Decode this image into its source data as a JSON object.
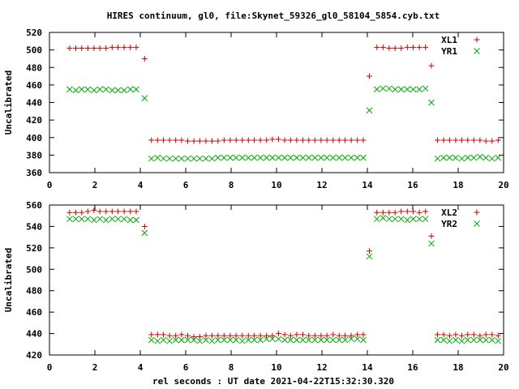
{
  "title": "HIRES continuum, gl0, file:Skynet_59326_gl0_58104_5854.cyb.txt",
  "xlabel": "rel seconds : UT date 2021-04-22T15:32:30.320",
  "colors": {
    "red": "#cc0000",
    "green": "#00aa00",
    "axis": "#000000",
    "background": "#ffffff"
  },
  "chart_data": [
    {
      "type": "scatter",
      "ylabel": "Uncalibrated",
      "xlim": [
        0,
        20
      ],
      "ylim": [
        360,
        520
      ],
      "xticks": [
        "0",
        "2",
        "4",
        "6",
        "8",
        "10",
        "12",
        "14",
        "16",
        "18",
        "20"
      ],
      "yticks": [
        "360",
        "380",
        "400",
        "420",
        "440",
        "460",
        "480",
        "500",
        "520"
      ],
      "legend_position": "top-right",
      "series": [
        {
          "name": "XL1",
          "marker": "plus",
          "color": "#cc0000",
          "x": [
            0.89,
            1.16,
            1.42,
            1.69,
            1.96,
            2.22,
            2.49,
            2.76,
            3.02,
            3.29,
            3.56,
            3.82,
            4.19,
            4.49,
            4.76,
            5.02,
            5.29,
            5.56,
            5.82,
            6.09,
            6.36,
            6.62,
            6.89,
            7.16,
            7.42,
            7.69,
            7.96,
            8.22,
            8.49,
            8.76,
            9.02,
            9.29,
            9.56,
            9.82,
            10.09,
            10.36,
            10.62,
            10.89,
            11.16,
            11.42,
            11.69,
            11.96,
            12.22,
            12.49,
            12.76,
            13.02,
            13.29,
            13.56,
            13.82,
            14.09,
            14.42,
            14.69,
            14.96,
            15.22,
            15.49,
            15.76,
            16.02,
            16.29,
            16.56,
            16.82,
            17.09,
            17.36,
            17.62,
            17.89,
            18.16,
            18.42,
            18.69,
            18.96,
            19.22,
            19.49,
            19.76
          ],
          "y": [
            502,
            502,
            502,
            502,
            502,
            502,
            502,
            503,
            503,
            503,
            503,
            503,
            490,
            397,
            397,
            397,
            397,
            397,
            397,
            396,
            396,
            396,
            396,
            396,
            396,
            397,
            397,
            397,
            397,
            397,
            397,
            397,
            397,
            398,
            398,
            397,
            397,
            397,
            397,
            397,
            397,
            397,
            397,
            397,
            397,
            397,
            397,
            397,
            397,
            470,
            503,
            503,
            502,
            502,
            502,
            503,
            503,
            503,
            503,
            482,
            397,
            397,
            397,
            397,
            397,
            397,
            397,
            397,
            396,
            396,
            397
          ]
        },
        {
          "name": "YR1",
          "marker": "cross",
          "color": "#00aa00",
          "x": [
            0.89,
            1.16,
            1.42,
            1.69,
            1.96,
            2.22,
            2.49,
            2.76,
            3.02,
            3.29,
            3.56,
            3.82,
            4.19,
            4.49,
            4.76,
            5.02,
            5.29,
            5.56,
            5.82,
            6.09,
            6.36,
            6.62,
            6.89,
            7.16,
            7.42,
            7.69,
            7.96,
            8.22,
            8.49,
            8.76,
            9.02,
            9.29,
            9.56,
            9.82,
            10.09,
            10.36,
            10.62,
            10.89,
            11.16,
            11.42,
            11.69,
            11.96,
            12.22,
            12.49,
            12.76,
            13.02,
            13.29,
            13.56,
            13.82,
            14.09,
            14.42,
            14.69,
            14.96,
            15.22,
            15.49,
            15.76,
            16.02,
            16.29,
            16.56,
            16.82,
            17.09,
            17.36,
            17.62,
            17.89,
            18.16,
            18.42,
            18.69,
            18.96,
            19.22,
            19.49,
            19.76
          ],
          "y": [
            455,
            454,
            455,
            455,
            454,
            455,
            455,
            454,
            454,
            454,
            455,
            455,
            445,
            376,
            377,
            376,
            376,
            376,
            376,
            376,
            376,
            376,
            376,
            376,
            377,
            377,
            377,
            377,
            377,
            377,
            377,
            377,
            377,
            377,
            377,
            377,
            377,
            377,
            377,
            377,
            377,
            377,
            377,
            377,
            377,
            377,
            377,
            377,
            377,
            431,
            455,
            456,
            456,
            455,
            455,
            455,
            455,
            455,
            456,
            440,
            376,
            377,
            377,
            377,
            376,
            377,
            377,
            378,
            377,
            376,
            377
          ]
        }
      ]
    },
    {
      "type": "scatter",
      "ylabel": "Uncalibrated",
      "xlim": [
        0,
        20
      ],
      "ylim": [
        420,
        560
      ],
      "xticks": [
        "0",
        "2",
        "4",
        "6",
        "8",
        "10",
        "12",
        "14",
        "16",
        "18",
        "20"
      ],
      "yticks": [
        "420",
        "440",
        "460",
        "480",
        "500",
        "520",
        "540",
        "560"
      ],
      "legend_position": "top-right",
      "series": [
        {
          "name": "XL2",
          "marker": "plus",
          "color": "#cc0000",
          "x": [
            0.89,
            1.16,
            1.42,
            1.69,
            1.96,
            2.22,
            2.49,
            2.76,
            3.02,
            3.29,
            3.56,
            3.82,
            4.19,
            4.49,
            4.76,
            5.02,
            5.29,
            5.56,
            5.82,
            6.09,
            6.36,
            6.62,
            6.89,
            7.16,
            7.42,
            7.69,
            7.96,
            8.22,
            8.49,
            8.76,
            9.02,
            9.29,
            9.56,
            9.82,
            10.09,
            10.36,
            10.62,
            10.89,
            11.16,
            11.42,
            11.69,
            11.96,
            12.22,
            12.49,
            12.76,
            13.02,
            13.29,
            13.56,
            13.82,
            14.09,
            14.42,
            14.69,
            14.96,
            15.22,
            15.49,
            15.76,
            16.02,
            16.29,
            16.56,
            16.82,
            17.09,
            17.36,
            17.62,
            17.89,
            18.16,
            18.42,
            18.69,
            18.96,
            19.22,
            19.49,
            19.76
          ],
          "y": [
            553,
            553,
            553,
            554,
            555,
            554,
            554,
            554,
            554,
            554,
            554,
            554,
            540,
            439,
            439,
            439,
            438,
            438,
            439,
            438,
            437,
            437,
            438,
            438,
            438,
            438,
            438,
            438,
            438,
            438,
            438,
            438,
            438,
            438,
            440,
            439,
            438,
            439,
            439,
            438,
            438,
            438,
            438,
            439,
            438,
            438,
            438,
            439,
            439,
            517,
            553,
            553,
            553,
            553,
            554,
            554,
            554,
            553,
            554,
            531,
            439,
            439,
            438,
            439,
            438,
            439,
            439,
            438,
            439,
            439,
            438
          ]
        },
        {
          "name": "YR2",
          "marker": "cross",
          "color": "#00aa00",
          "x": [
            0.89,
            1.16,
            1.42,
            1.69,
            1.96,
            2.22,
            2.49,
            2.76,
            3.02,
            3.29,
            3.56,
            3.82,
            4.19,
            4.49,
            4.76,
            5.02,
            5.29,
            5.56,
            5.82,
            6.09,
            6.36,
            6.62,
            6.89,
            7.16,
            7.42,
            7.69,
            7.96,
            8.22,
            8.49,
            8.76,
            9.02,
            9.29,
            9.56,
            9.82,
            10.09,
            10.36,
            10.62,
            10.89,
            11.16,
            11.42,
            11.69,
            11.96,
            12.22,
            12.49,
            12.76,
            13.02,
            13.29,
            13.56,
            13.82,
            14.09,
            14.42,
            14.69,
            14.96,
            15.22,
            15.49,
            15.76,
            16.02,
            16.29,
            16.56,
            16.82,
            17.09,
            17.36,
            17.62,
            17.89,
            18.16,
            18.42,
            18.69,
            18.96,
            19.22,
            19.49,
            19.76
          ],
          "y": [
            547,
            547,
            547,
            547,
            546,
            547,
            546,
            547,
            547,
            547,
            546,
            546,
            534,
            434,
            433,
            434,
            433,
            434,
            434,
            434,
            434,
            433,
            434,
            433,
            434,
            434,
            434,
            434,
            433,
            434,
            434,
            434,
            435,
            435,
            435,
            434,
            434,
            434,
            434,
            434,
            434,
            434,
            434,
            434,
            434,
            434,
            435,
            435,
            434,
            512,
            547,
            548,
            547,
            547,
            547,
            546,
            547,
            547,
            547,
            524,
            434,
            434,
            433,
            434,
            433,
            434,
            434,
            434,
            434,
            434,
            433
          ]
        }
      ]
    }
  ]
}
